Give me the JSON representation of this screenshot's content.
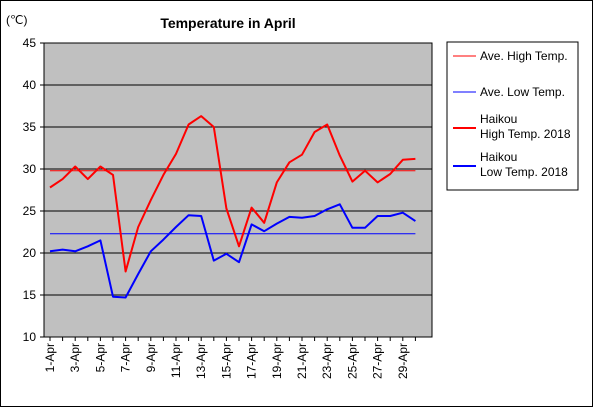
{
  "chart_data": {
    "type": "line",
    "title": "Temperature in April",
    "y_unit": "(℃)",
    "ylim": [
      10,
      45
    ],
    "y_ticks": [
      10,
      15,
      20,
      25,
      30,
      35,
      40,
      45
    ],
    "grid": true,
    "legend_position": "right",
    "x_labels": [
      "1-Apr",
      "3-Apr",
      "5-Apr",
      "7-Apr",
      "9-Apr",
      "11-Apr",
      "13-Apr",
      "15-Apr",
      "17-Apr",
      "19-Apr",
      "21-Apr",
      "23-Apr",
      "25-Apr",
      "27-Apr",
      "29-Apr"
    ],
    "x": [
      1,
      2,
      3,
      4,
      5,
      6,
      7,
      8,
      9,
      10,
      11,
      12,
      13,
      14,
      15,
      16,
      17,
      18,
      19,
      20,
      21,
      22,
      23,
      24,
      25,
      26,
      27,
      28,
      29,
      30
    ],
    "series": [
      {
        "name": "Ave. High Temp.",
        "color": "#ff0000",
        "width": 1,
        "values": [
          29.8,
          29.8,
          29.8,
          29.8,
          29.8,
          29.8,
          29.8,
          29.8,
          29.8,
          29.8,
          29.8,
          29.8,
          29.8,
          29.8,
          29.8,
          29.8,
          29.8,
          29.8,
          29.8,
          29.8,
          29.8,
          29.8,
          29.8,
          29.8,
          29.8,
          29.8,
          29.8,
          29.8,
          29.8,
          29.8
        ]
      },
      {
        "name": "Ave. Low Temp.",
        "color": "#0000ff",
        "width": 1,
        "values": [
          22.3,
          22.3,
          22.3,
          22.3,
          22.3,
          22.3,
          22.3,
          22.3,
          22.3,
          22.3,
          22.3,
          22.3,
          22.3,
          22.3,
          22.3,
          22.3,
          22.3,
          22.3,
          22.3,
          22.3,
          22.3,
          22.3,
          22.3,
          22.3,
          22.3,
          22.3,
          22.3,
          22.3,
          22.3,
          22.3
        ]
      },
      {
        "name": "Haikou\nHigh Temp. 2018",
        "color": "#ff0000",
        "width": 2,
        "values": [
          27.8,
          28.8,
          30.3,
          28.8,
          30.3,
          29.3,
          17.8,
          23.1,
          26.3,
          29.3,
          31.8,
          35.3,
          36.3,
          35.0,
          25.3,
          20.8,
          25.4,
          23.6,
          28.4,
          30.8,
          31.7,
          34.4,
          35.3,
          31.6,
          28.5,
          29.8,
          28.4,
          29.4,
          31.1,
          31.2
        ]
      },
      {
        "name": "Haikou\nLow Temp. 2018",
        "color": "#0000ff",
        "width": 2,
        "values": [
          20.2,
          20.4,
          20.2,
          20.8,
          21.5,
          14.8,
          14.7,
          17.5,
          20.2,
          21.6,
          23.1,
          24.5,
          24.4,
          19.1,
          19.9,
          18.9,
          23.4,
          22.6,
          23.5,
          24.3,
          24.2,
          24.4,
          25.2,
          25.8,
          23.0,
          23.0,
          24.4,
          24.4,
          24.8,
          23.8
        ]
      }
    ]
  }
}
